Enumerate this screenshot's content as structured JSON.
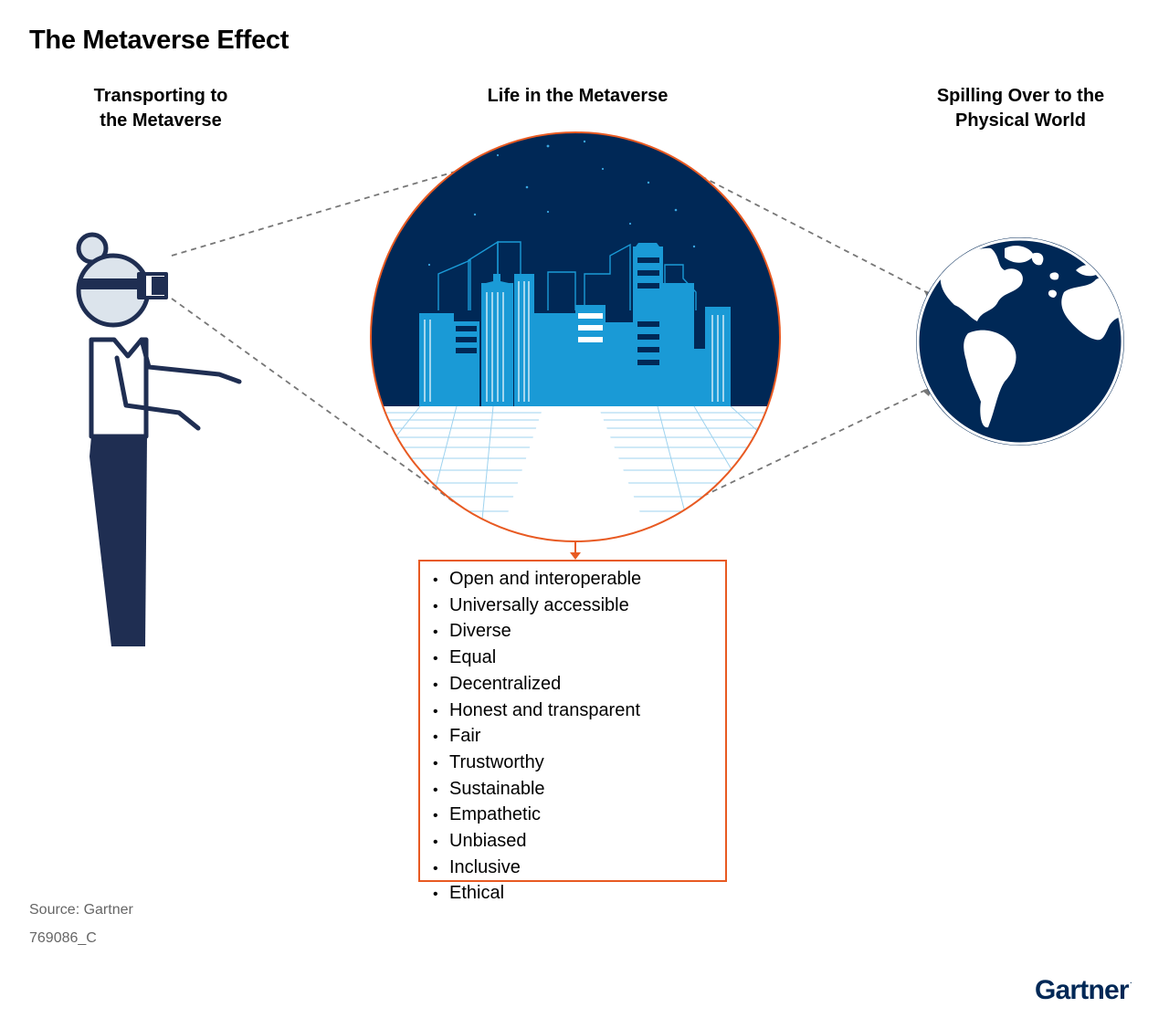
{
  "title": "The Metaverse Effect",
  "columns": {
    "left": [
      "Transporting to",
      "the Metaverse"
    ],
    "center": "Life in the Metaverse",
    "right": [
      "Spilling Over to the",
      "Physical World"
    ]
  },
  "qualities": [
    "Open and interoperable",
    "Universally accessible",
    "Diverse",
    "Equal",
    "Decentralized",
    "Honest and transparent",
    "Fair",
    "Trustworthy",
    "Sustainable",
    "Empathetic",
    "Unbiased",
    "Inclusive",
    "Ethical"
  ],
  "bullet": "•",
  "footer": {
    "source": "Source: Gartner",
    "code": "769086_C"
  },
  "logo": {
    "text": "Gartner",
    "mark": "."
  },
  "colors": {
    "navy": "#002856",
    "building_blue": "#1a9ad6",
    "accent_orange": "#e85a22",
    "dash_gray": "#777777",
    "head_fill": "#dce4ec"
  },
  "icons": [
    "vr-headset-icon",
    "person-icon",
    "city-skyline-icon",
    "globe-icon"
  ]
}
